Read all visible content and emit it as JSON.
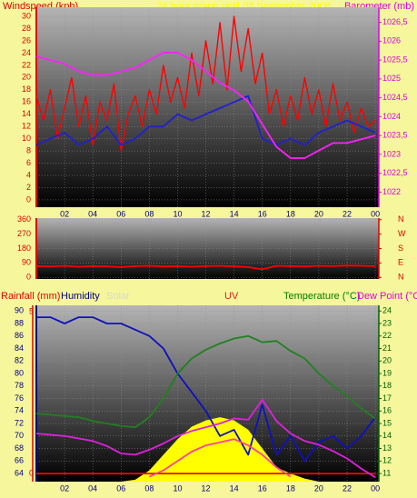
{
  "chart_data": [
    {
      "type": "line",
      "title": "24 hour graph until 08 September 2008",
      "ylabel": "Windspeed (kph)",
      "y2label": "Barometer (mb)",
      "x": [
        0,
        1,
        2,
        3,
        4,
        5,
        6,
        7,
        8,
        9,
        10,
        11,
        12,
        13,
        14,
        15,
        16,
        17,
        18,
        19,
        20,
        21,
        22,
        23,
        24
      ],
      "xlim": [
        0,
        24.25
      ],
      "xticks": [
        {
          "value": 2,
          "label": "02"
        },
        {
          "value": 4,
          "label": "04"
        },
        {
          "value": 6,
          "label": "06"
        },
        {
          "value": 8,
          "label": "08"
        },
        10,
        12,
        14,
        16,
        18,
        20,
        22,
        {
          "value": 24,
          "label": "00"
        }
      ],
      "ylim": [
        -1.2,
        31.5
      ],
      "yticks": [
        0,
        2,
        4,
        6,
        8,
        10,
        12,
        14,
        16,
        18,
        20,
        22,
        24,
        26,
        28,
        30
      ],
      "y2lim": [
        1021.6,
        1026.9
      ],
      "y2ticks": [
        1022,
        {
          "value": 1022.5,
          "label": "1022,5"
        },
        1023,
        {
          "value": 1023.5,
          "label": "1023,5"
        },
        1024,
        {
          "value": 1024.5,
          "label": "1024,5"
        },
        1025,
        {
          "value": 1025.5,
          "label": "1025,5"
        },
        1026,
        {
          "value": 1026.5,
          "label": "1026,5"
        }
      ],
      "grid": true,
      "series": [
        {
          "color": "#ff0000",
          "x": [
            0,
            0.5,
            1,
            1.5,
            2,
            2.5,
            3,
            3.5,
            4,
            4.5,
            5,
            5.5,
            6,
            6.5,
            7,
            7.5,
            8,
            8.5,
            9,
            9.5,
            10,
            10.5,
            11,
            11.5,
            12,
            12.5,
            13,
            13.5,
            14,
            14.5,
            15,
            15.5,
            16,
            16.5,
            17,
            17.5,
            18,
            18.5,
            19,
            19.5,
            20,
            20.5,
            21,
            21.5,
            22,
            22.5,
            23,
            23.5,
            24
          ],
          "values": [
            17,
            13,
            18,
            10,
            15,
            20,
            12,
            17,
            9,
            16,
            13,
            19,
            8,
            14,
            17,
            12,
            18,
            14,
            22,
            16,
            20,
            15,
            24,
            17,
            26,
            19,
            29,
            18,
            30,
            21,
            28,
            19,
            24,
            14,
            18,
            12,
            17,
            13,
            20,
            14,
            18,
            12,
            19,
            13,
            16,
            11,
            15,
            12,
            13
          ]
        },
        {
          "color": "#2020d0",
          "values": [
            9,
            10,
            11,
            9,
            10,
            12,
            9,
            10,
            12,
            12,
            14,
            13,
            14,
            15,
            16,
            17,
            10,
            9,
            10,
            9,
            11,
            12,
            13,
            12,
            11
          ]
        },
        {
          "color": "#ff20ff",
          "axis": "y2",
          "values": [
            1025.6,
            1025.5,
            1025.4,
            1025.2,
            1025.1,
            1025.1,
            1025.2,
            1025.3,
            1025.5,
            1025.7,
            1025.7,
            1025.5,
            1025.2,
            1024.9,
            1024.7,
            1024.4,
            1023.8,
            1023.2,
            1022.9,
            1022.9,
            1023.1,
            1023.3,
            1023.3,
            1023.4,
            1023.5
          ]
        }
      ]
    },
    {
      "type": "line",
      "x": [
        0,
        1,
        2,
        3,
        4,
        5,
        6,
        7,
        8,
        9,
        10,
        11,
        12,
        13,
        14,
        15,
        16,
        17,
        18,
        19,
        20,
        21,
        22,
        23,
        24
      ],
      "xlim": [
        0,
        24.25
      ],
      "xticks": [
        2,
        4,
        6,
        8,
        10,
        12,
        14,
        16,
        18,
        20,
        22,
        24
      ],
      "ylim": [
        -10,
        370
      ],
      "yticks": [
        0,
        90,
        180,
        270,
        360
      ],
      "y2lim": [
        -10,
        370
      ],
      "y2ticks": [
        {
          "value": 360,
          "label": "N"
        },
        {
          "value": 270,
          "label": "W"
        },
        {
          "value": 180,
          "label": "S"
        },
        {
          "value": 90,
          "label": "E"
        },
        {
          "value": 0,
          "label": "N"
        }
      ],
      "grid": true,
      "series": [
        {
          "color": "#ff0000",
          "values": [
            70,
            68,
            72,
            66,
            70,
            68,
            64,
            70,
            72,
            68,
            70,
            66,
            70,
            72,
            68,
            64,
            50,
            72,
            70,
            68,
            72,
            70,
            74,
            72,
            70
          ]
        }
      ]
    },
    {
      "type": "line",
      "x": [
        0,
        1,
        2,
        3,
        4,
        5,
        6,
        7,
        8,
        9,
        10,
        11,
        12,
        13,
        14,
        15,
        16,
        17,
        18,
        19,
        20,
        21,
        22,
        23,
        24
      ],
      "xlim": [
        0,
        24.25
      ],
      "xticks": [
        {
          "value": 2,
          "label": "02"
        },
        {
          "value": 4,
          "label": "04"
        },
        {
          "value": 6,
          "label": "06"
        },
        {
          "value": 8,
          "label": "08"
        },
        10,
        12,
        14,
        16,
        18,
        20,
        22,
        {
          "value": 24,
          "label": "00"
        }
      ],
      "ylim": [
        62.7,
        90.9
      ],
      "yticks": [
        64,
        66,
        68,
        70,
        72,
        74,
        76,
        78,
        80,
        82,
        84,
        86,
        88,
        90
      ],
      "y2lim": [
        10.35,
        24.45
      ],
      "y2ticks": [
        11,
        12,
        13,
        14,
        15,
        16,
        17,
        18,
        19,
        20,
        21,
        22,
        23,
        24
      ],
      "y3lim": [
        -0.25,
        5.2
      ],
      "y3ticks": [
        0,
        5
      ],
      "grid": true,
      "series": [
        {
          "name": "Solar",
          "type": "area",
          "color": "#ffff00",
          "values": [
            62.7,
            62.7,
            62.7,
            62.7,
            62.7,
            62.7,
            62.7,
            63,
            64.5,
            67,
            69.5,
            71.5,
            72.5,
            73,
            72.5,
            71,
            68,
            65,
            64,
            63.2,
            62.7,
            62.7,
            62.7,
            62.7,
            62.7
          ]
        },
        {
          "name": "Rainfall (mm)",
          "color": "#ff0000",
          "axis": "y3",
          "values": [
            0,
            0,
            0,
            0,
            0,
            0,
            0,
            0,
            0,
            0,
            0,
            0,
            0,
            0,
            0,
            0,
            0,
            0,
            0,
            0,
            0,
            0,
            0,
            0,
            0
          ]
        },
        {
          "name": "Humidity",
          "color": "#1010c0",
          "values": [
            89,
            89,
            88,
            89,
            89,
            88,
            88,
            87,
            86,
            84,
            80,
            77,
            74,
            70,
            71,
            67,
            75,
            67,
            70,
            66,
            69,
            70,
            68,
            70,
            73
          ]
        },
        {
          "name": "UV",
          "color": "#ff40a0",
          "values": [
            null,
            null,
            null,
            null,
            null,
            null,
            null,
            null,
            63.5,
            64.5,
            66,
            67.5,
            68.5,
            69,
            69.5,
            68.5,
            67,
            65,
            63.5,
            null,
            null,
            null,
            null,
            null,
            null
          ]
        },
        {
          "name": "Temperature (°C)",
          "color": "#208020",
          "axis": "y2",
          "values": [
            15.8,
            15.7,
            15.6,
            15.5,
            15.2,
            15.0,
            14.8,
            14.7,
            15.5,
            17.0,
            19.0,
            20.2,
            20.9,
            21.4,
            21.8,
            22.0,
            21.5,
            21.6,
            20.8,
            20.2,
            19.0,
            18.0,
            17.2,
            16.2,
            15.4
          ]
        },
        {
          "name": "Dew Point (°C",
          "color": "#e020e0",
          "axis": "y2",
          "values": [
            14.2,
            14.1,
            14.0,
            13.8,
            13.6,
            13.2,
            12.6,
            12.5,
            12.9,
            13.4,
            14.0,
            14.4,
            14.7,
            15.0,
            15.4,
            15.3,
            16.9,
            15.2,
            14.2,
            13.6,
            13.3,
            12.8,
            12.2,
            11.4,
            10.7
          ]
        }
      ]
    }
  ]
}
